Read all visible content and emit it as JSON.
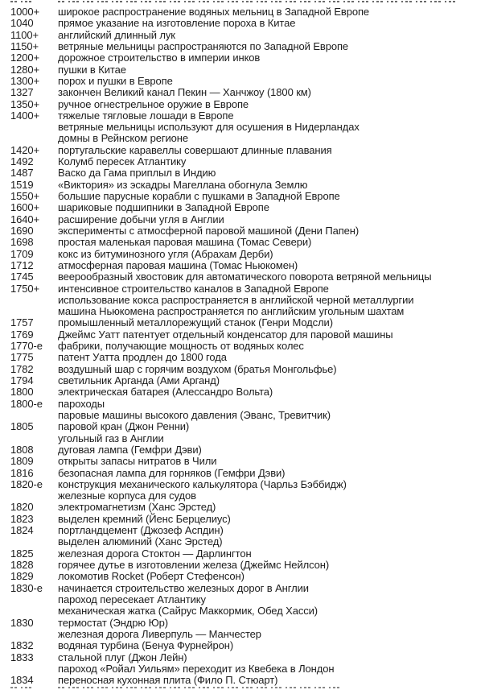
{
  "page": {
    "background": "#ffffff",
    "text_color": "#1c1c1c",
    "language": "ru",
    "description": "Chronological list of technology milestones (book page fragment)"
  },
  "timeline": {
    "rows": [
      {
        "year": "1000+",
        "lines": [
          "широкое распространение водяных мельниц в Западной Европе"
        ]
      },
      {
        "year": "1040",
        "lines": [
          "прямое указание на изготовление пороха в Китае"
        ]
      },
      {
        "year": "1100+",
        "lines": [
          "английский длинный лук"
        ]
      },
      {
        "year": "1150+",
        "lines": [
          "ветряные мельницы распространяются по Западной Европе"
        ]
      },
      {
        "year": "1200+",
        "lines": [
          "дорожное строительство в империи инков"
        ]
      },
      {
        "year": "1280+",
        "lines": [
          "пушки в Китае"
        ]
      },
      {
        "year": "1300+",
        "lines": [
          "порох и пушки в Европе"
        ]
      },
      {
        "year": "1327",
        "lines": [
          "закончен Великий канал Пекин — Ханчжоу (1800 км)"
        ]
      },
      {
        "year": "1350+",
        "lines": [
          "ручное огнестрельное оружие в Европе"
        ]
      },
      {
        "year": "1400+",
        "lines": [
          "тяжелые тягловые лошади в Европе",
          "ветряные мельницы используют для осушения в Нидерландах",
          "домны в Рейнском регионе"
        ]
      },
      {
        "year": "1420+",
        "lines": [
          "португальские каравеллы совершают длинные плавания"
        ]
      },
      {
        "year": "1492",
        "lines": [
          "Колумб пересек Атлантику"
        ]
      },
      {
        "year": "1487",
        "lines": [
          "Васко да Гама приплыл в Индию"
        ]
      },
      {
        "year": "1519",
        "lines": [
          "«Виктория» из эскадры Магеллана обогнула Землю"
        ]
      },
      {
        "year": "1550+",
        "lines": [
          "большие парусные корабли с пушками в Западной Европе"
        ]
      },
      {
        "year": "1600+",
        "lines": [
          "шариковые подшипники в Западной Европе"
        ]
      },
      {
        "year": "1640+",
        "lines": [
          "расширение добычи угля в Англии"
        ]
      },
      {
        "year": "1690",
        "lines": [
          "эксперименты с атмосферной паровой машиной (Дени Папен)"
        ]
      },
      {
        "year": "1698",
        "lines": [
          "простая маленькая паровая машина (Томас Севери)"
        ]
      },
      {
        "year": "1709",
        "lines": [
          "кокс из битуминозного угля (Абрахам Дерби)"
        ]
      },
      {
        "year": "1712",
        "lines": [
          "атмосферная паровая машина (Томас Ньюкомен)"
        ]
      },
      {
        "year": "1745",
        "lines": [
          "веерообразный хвостовик для автоматического поворота ветряной мельницы"
        ]
      },
      {
        "year": "1750+",
        "lines": [
          "интенсивное строительство каналов в Западной Европе",
          "использование кокса распространяется в английской черной металлургии",
          "машина Ньюкомена распространяется по английским угольным шахтам"
        ]
      },
      {
        "year": "1757",
        "lines": [
          "промышленный металлорежущий станок (Генри Модсли)"
        ]
      },
      {
        "year": "1769",
        "lines": [
          "Джеймс Уатт патентует отдельный конденсатор для паровой машины"
        ]
      },
      {
        "year": "1770-е",
        "lines": [
          "фабрики, получающие мощность от водяных колес"
        ]
      },
      {
        "year": "1775",
        "lines": [
          "патент Уатта продлен до 1800 года"
        ]
      },
      {
        "year": "1782",
        "lines": [
          "воздушный шар с горячим воздухом (братья Монгольфье)"
        ]
      },
      {
        "year": "1794",
        "lines": [
          "светильник Арганда (Ами Арганд)"
        ]
      },
      {
        "year": "1800",
        "lines": [
          "электрическая батарея (Алессандро Вольта)"
        ]
      },
      {
        "year": "1800-е",
        "lines": [
          "пароходы",
          "паровые машины высокого давления (Эванс, Тревитчик)"
        ]
      },
      {
        "year": "1805",
        "lines": [
          "паровой кран (Джон Ренни)",
          "угольный газ в Англии"
        ]
      },
      {
        "year": "1808",
        "lines": [
          "дуговая лампа (Гемфри Дэви)"
        ]
      },
      {
        "year": "1809",
        "lines": [
          "открыты запасы нитратов в Чили"
        ]
      },
      {
        "year": "1816",
        "lines": [
          "безопасная лампа для горняков (Гемфри Дэви)"
        ]
      },
      {
        "year": "1820-е",
        "lines": [
          "конструкция механического калькулятора (Чарльз Бэббидж)",
          "железные корпуса для судов"
        ]
      },
      {
        "year": "1820",
        "lines": [
          "электромагнетизм (Ханс Эрстед)"
        ]
      },
      {
        "year": "1823",
        "lines": [
          "выделен кремний (Йенс Берцелиус)"
        ]
      },
      {
        "year": "1824",
        "lines": [
          "портландцемент (Джозеф Аспдин)",
          "выделен алюминий (Ханс Эрстед)"
        ]
      },
      {
        "year": "1825",
        "lines": [
          "железная дорога Стоктон — Дарлингтон"
        ]
      },
      {
        "year": "1828",
        "lines": [
          "горячее дутье в изготовлении железа (Джеймс Нейлсон)"
        ]
      },
      {
        "year": "1829",
        "lines": [
          "локомотив Rocket (Роберт Стефенсон)"
        ]
      },
      {
        "year": "1830-е",
        "lines": [
          "начинается строительство железных дорог в Англии",
          "пароход пересекает Атлантику",
          "механическая жатка (Сайрус Маккормик, Обед Хасси)"
        ]
      },
      {
        "year": "1830",
        "lines": [
          "термостат (Эндрю Юр)",
          "железная дорога Ливерпуль — Манчестер"
        ]
      },
      {
        "year": "1832",
        "lines": [
          "водяная турбина (Бенуа Фурнейрон)"
        ]
      },
      {
        "year": "1833",
        "lines": [
          "стальной плуг (Джон Лейн)",
          "пароход «Ройал Уильям» переходит из Квебека в Лондон"
        ]
      },
      {
        "year": "1834",
        "lines": [
          "переносная кухонная плита (Фило П. Стюарт)"
        ]
      }
    ]
  }
}
